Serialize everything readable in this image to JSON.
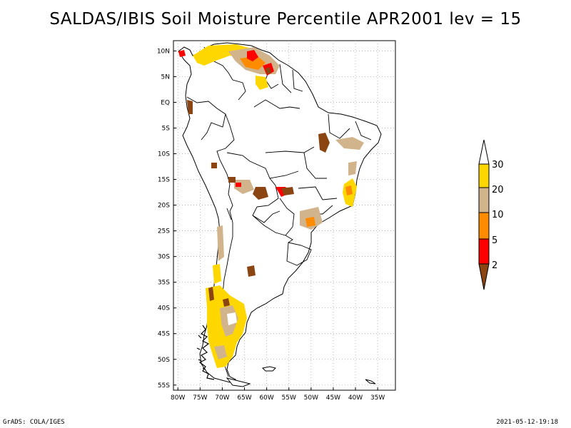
{
  "title": "SALDAS/IBIS Soil Moisture Percentile APR2001 lev = 15",
  "footer_left": "GrADS: COLA/IGES",
  "footer_right": "2021-05-12-19:18",
  "map": {
    "lon_range": [
      -81,
      -31
    ],
    "lat_range": [
      -56,
      12
    ],
    "lon_ticks": [
      {
        "value": -80,
        "label": "80W"
      },
      {
        "value": -75,
        "label": "75W"
      },
      {
        "value": -70,
        "label": "70W"
      },
      {
        "value": -65,
        "label": "65W"
      },
      {
        "value": -60,
        "label": "60W"
      },
      {
        "value": -55,
        "label": "55W"
      },
      {
        "value": -50,
        "label": "50W"
      },
      {
        "value": -45,
        "label": "45W"
      },
      {
        "value": -40,
        "label": "40W"
      },
      {
        "value": -35,
        "label": "35W"
      }
    ],
    "lat_ticks": [
      {
        "value": 10,
        "label": "10N"
      },
      {
        "value": 5,
        "label": "5N"
      },
      {
        "value": 0,
        "label": "EQ"
      },
      {
        "value": -5,
        "label": "5S"
      },
      {
        "value": -10,
        "label": "10S"
      },
      {
        "value": -15,
        "label": "15S"
      },
      {
        "value": -20,
        "label": "20S"
      },
      {
        "value": -25,
        "label": "25S"
      },
      {
        "value": -30,
        "label": "30S"
      },
      {
        "value": -35,
        "label": "35S"
      },
      {
        "value": -40,
        "label": "40S"
      },
      {
        "value": -45,
        "label": "45S"
      },
      {
        "value": -50,
        "label": "50S"
      },
      {
        "value": -55,
        "label": "55S"
      }
    ],
    "grid": "dotted"
  },
  "colorbar": {
    "labels": [
      "30",
      "20",
      "10",
      "5",
      "2"
    ],
    "colors": {
      "above30": "#ffffff",
      "20_30": "#ffd700",
      "10_20": "#d2b48c",
      "5_10": "#ff8c00",
      "2_5": "#ff0000",
      "below2": "#8b4513"
    }
  }
}
